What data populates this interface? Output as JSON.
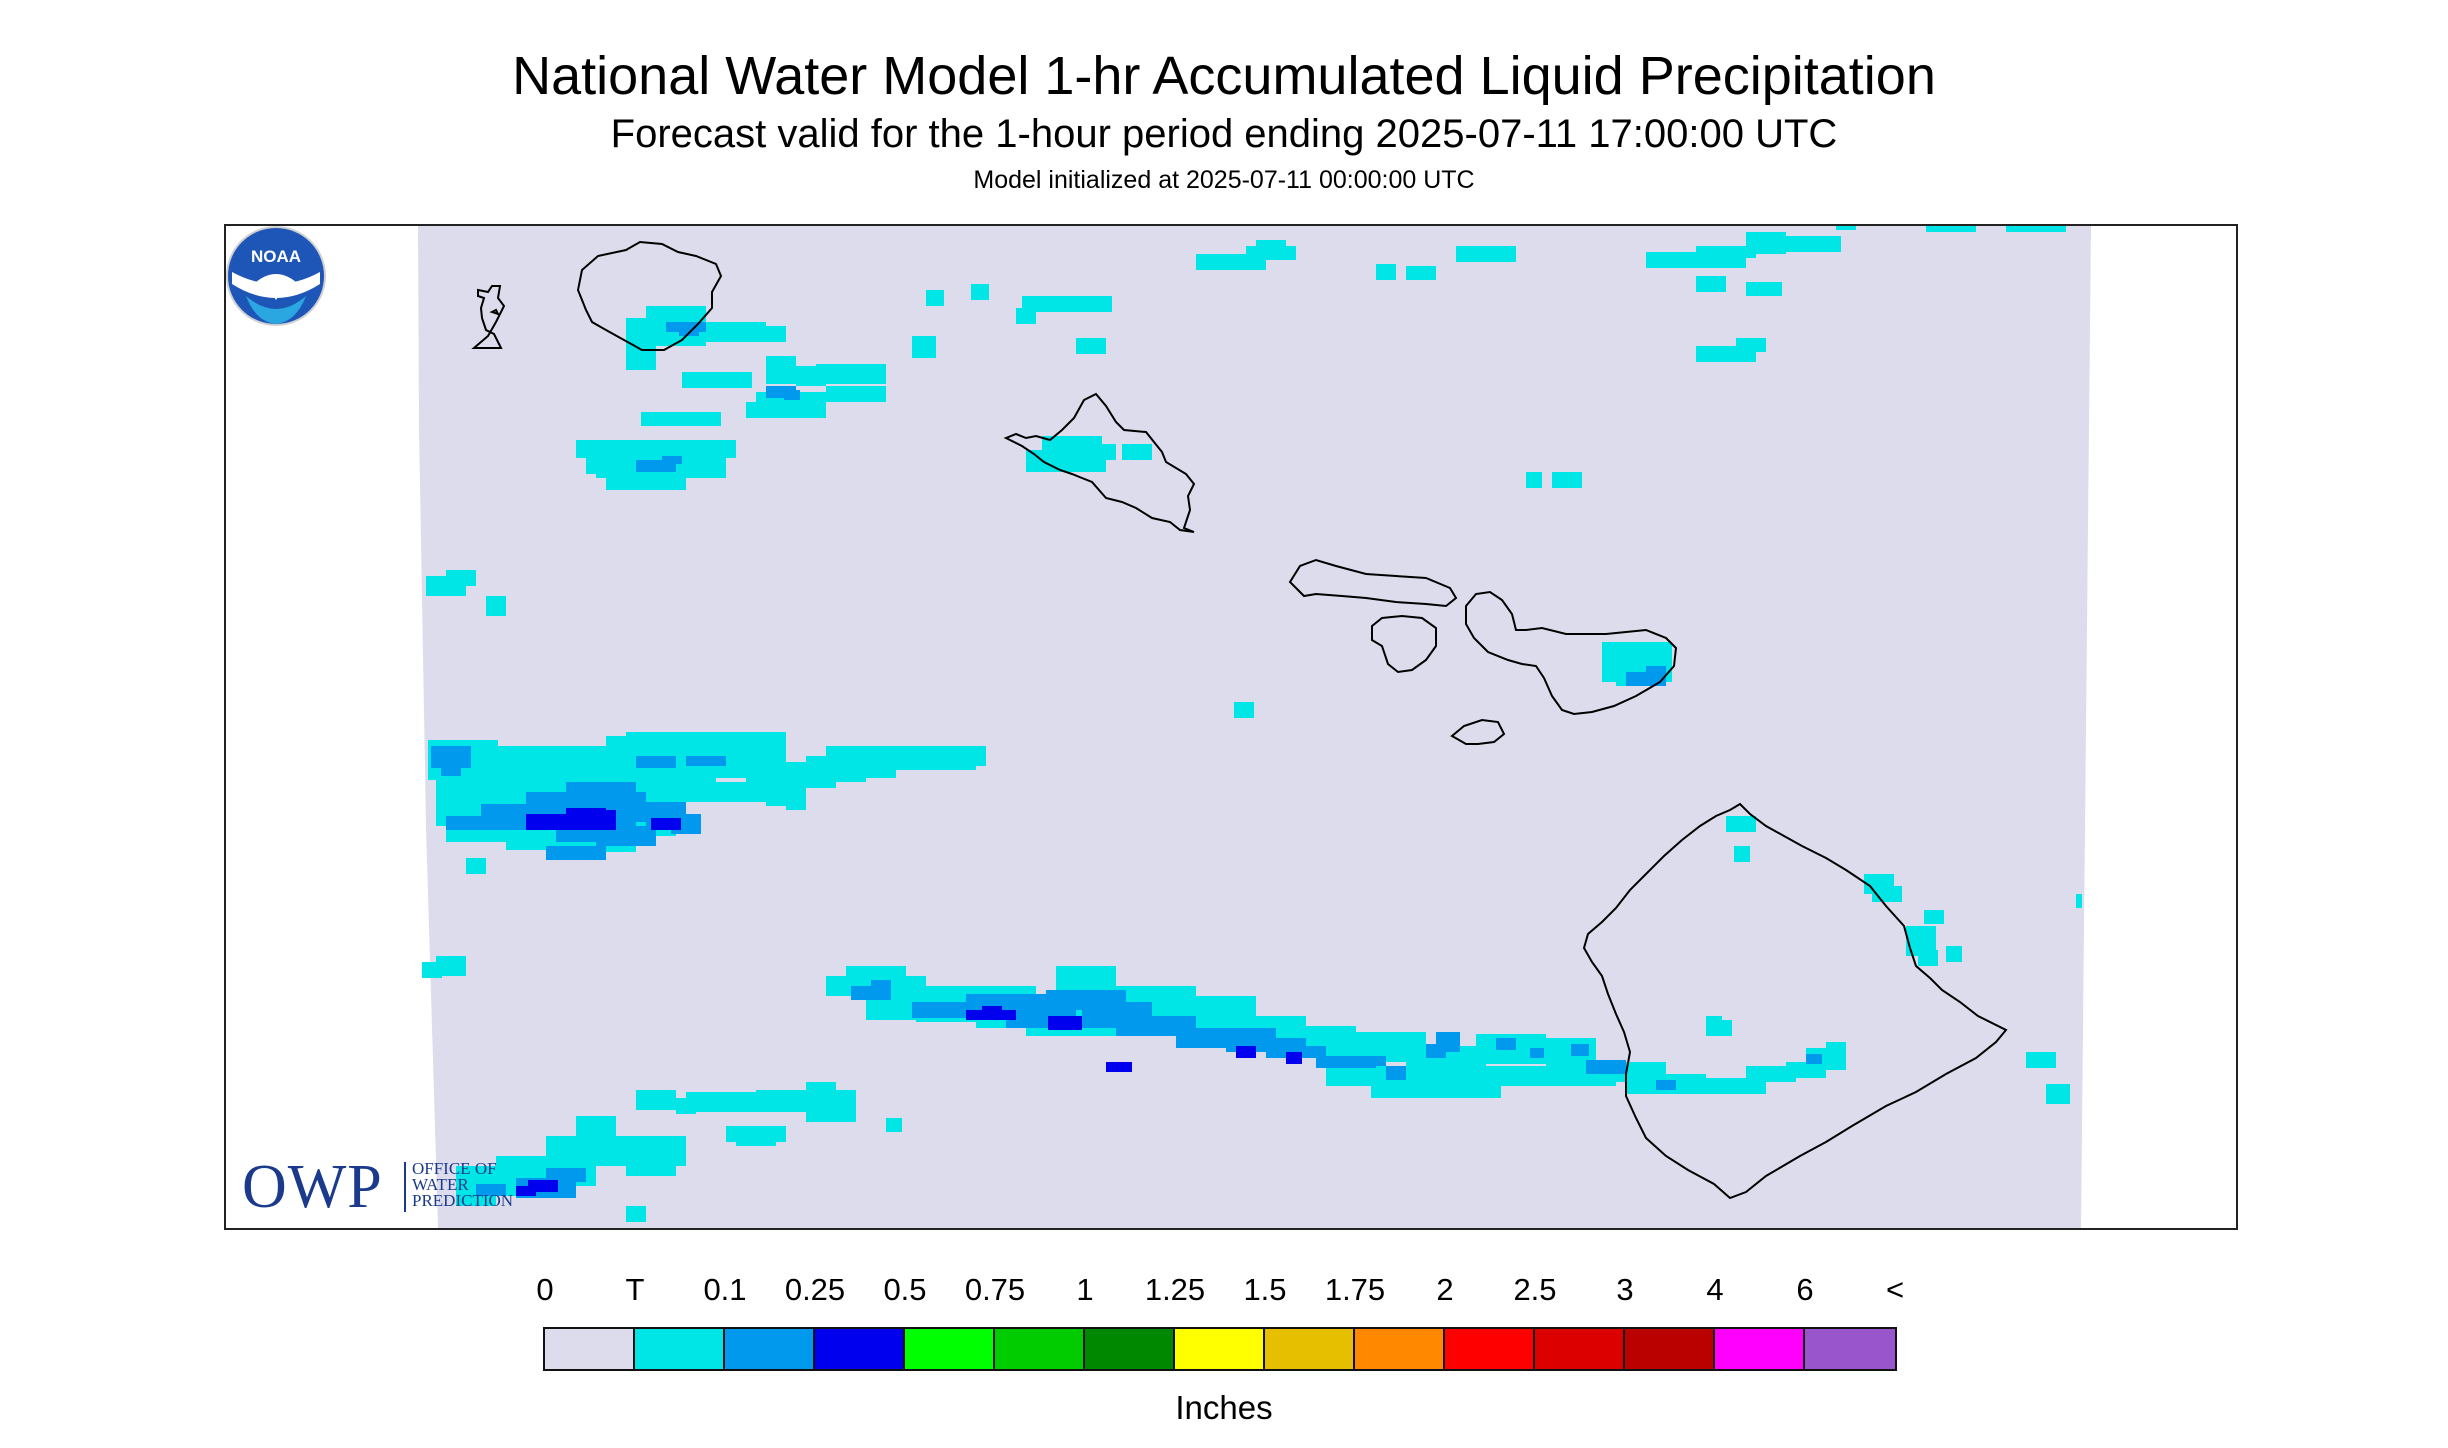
{
  "title": "National Water Model 1-hr Accumulated Liquid Precipitation",
  "subtitle": "Forecast valid for the 1-hour period ending 2025-07-11 17:00:00 UTC",
  "init_line": "Model initialized at 2025-07-11 00:00:00 UTC",
  "map": {
    "background_color": "#dcdcec",
    "islands": [
      "Niihau",
      "Kauai",
      "Oahu",
      "Molokai",
      "Lanai",
      "Maui",
      "Kahoolawe",
      "Hawaii"
    ]
  },
  "logos": {
    "owp_text": "OWP",
    "owp_lines": [
      "OFFICE OF",
      "WATER",
      "PREDICTION"
    ],
    "noaa_text": "NOAA"
  },
  "legend": {
    "labels": [
      "0",
      "T",
      "0.1",
      "0.25",
      "0.5",
      "0.75",
      "1",
      "1.25",
      "1.5",
      "1.75",
      "2",
      "2.5",
      "3",
      "4",
      "6",
      "<"
    ],
    "colors": [
      "#dcdcec",
      "#00e5e5",
      "#0099ee",
      "#0000ee",
      "#00ff00",
      "#00cc00",
      "#008800",
      "#ffff00",
      "#e5bf00",
      "#ff8800",
      "#ff0000",
      "#dd0000",
      "#bb0000",
      "#ff00ff",
      "#9955cc"
    ],
    "units": "Inches"
  }
}
